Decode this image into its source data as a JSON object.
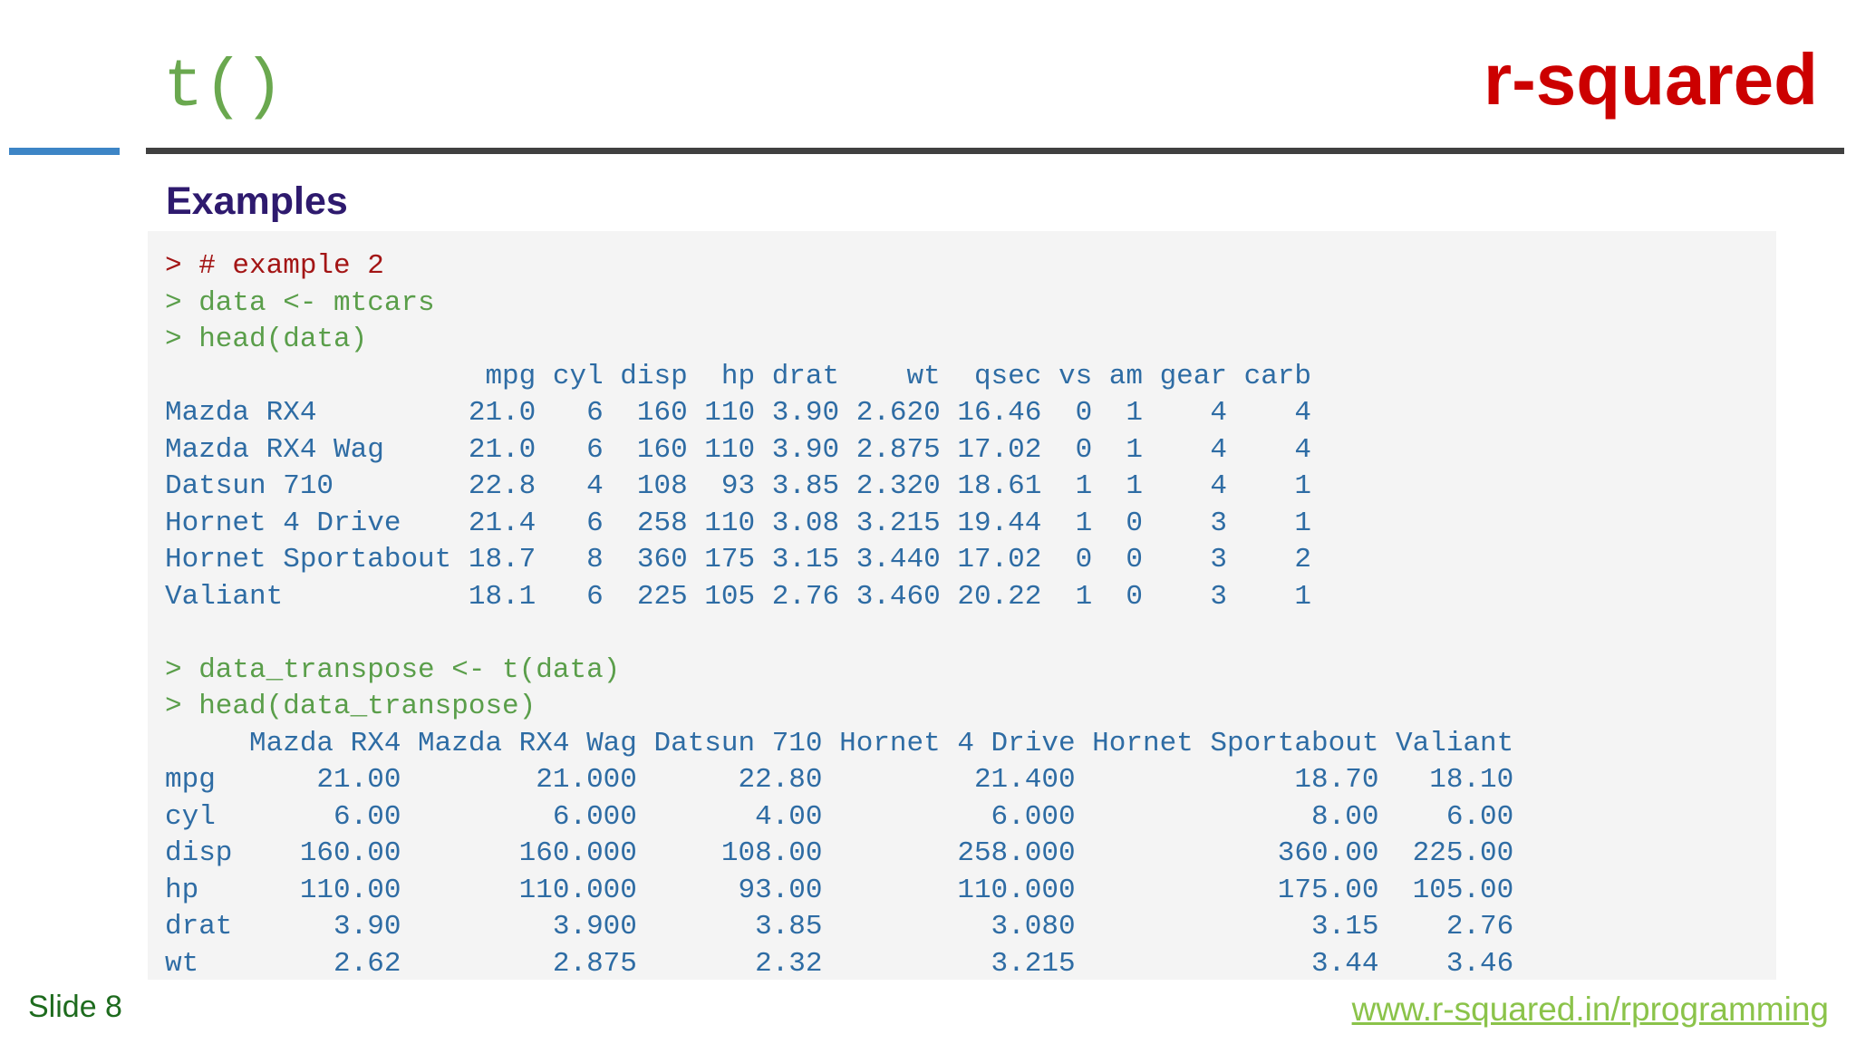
{
  "header": {
    "title": {
      "text": "t()",
      "color": "#6aa84f"
    },
    "brand": {
      "text": "r-squared",
      "color": "#cc0000"
    }
  },
  "section": "Examples",
  "code": {
    "blocks": [
      {
        "lines": [
          {
            "text": "> # example 2",
            "color": "#a31515"
          },
          {
            "text": "> data <- mtcars",
            "color": "#5a9e4a"
          },
          {
            "text": "> head(data)",
            "color": "#5a9e4a"
          },
          {
            "text": "                   mpg cyl disp  hp drat    wt  qsec vs am gear carb",
            "color": "#2e6ca4"
          },
          {
            "text": "Mazda RX4         21.0   6  160 110 3.90 2.620 16.46  0  1    4    4",
            "color": "#2e6ca4"
          },
          {
            "text": "Mazda RX4 Wag     21.0   6  160 110 3.90 2.875 17.02  0  1    4    4",
            "color": "#2e6ca4"
          },
          {
            "text": "Datsun 710        22.8   4  108  93 3.85 2.320 18.61  1  1    4    1",
            "color": "#2e6ca4"
          },
          {
            "text": "Hornet 4 Drive    21.4   6  258 110 3.08 3.215 19.44  1  0    3    1",
            "color": "#2e6ca4"
          },
          {
            "text": "Hornet Sportabout 18.7   8  360 175 3.15 3.440 17.02  0  0    3    2",
            "color": "#2e6ca4"
          },
          {
            "text": "Valiant           18.1   6  225 105 2.76 3.460 20.22  1  0    3    1",
            "color": "#2e6ca4"
          }
        ]
      },
      {
        "lines": [
          {
            "text": "> data_transpose <- t(data)",
            "color": "#5a9e4a"
          },
          {
            "text": "> head(data_transpose)",
            "color": "#5a9e4a"
          },
          {
            "text": "     Mazda RX4 Mazda RX4 Wag Datsun 710 Hornet 4 Drive Hornet Sportabout Valiant",
            "color": "#2e6ca4"
          },
          {
            "text": "mpg      21.00        21.000      22.80         21.400             18.70   18.10",
            "color": "#2e6ca4"
          },
          {
            "text": "cyl       6.00         6.000       4.00          6.000              8.00    6.00",
            "color": "#2e6ca4"
          },
          {
            "text": "disp    160.00       160.000     108.00        258.000            360.00  225.00",
            "color": "#2e6ca4"
          },
          {
            "text": "hp      110.00       110.000      93.00        110.000            175.00  105.00",
            "color": "#2e6ca4"
          },
          {
            "text": "drat      3.90         3.900       3.85          3.080              3.15    2.76",
            "color": "#2e6ca4"
          },
          {
            "text": "wt        2.62         2.875       2.32          3.215              3.44    3.46",
            "color": "#2e6ca4"
          }
        ]
      }
    ]
  },
  "footer": {
    "slide": {
      "text": "Slide 8",
      "color": "#1e6b1e"
    },
    "url": {
      "text": "www.r-squared.in/rprogramming",
      "color": "#8bc34a"
    }
  }
}
